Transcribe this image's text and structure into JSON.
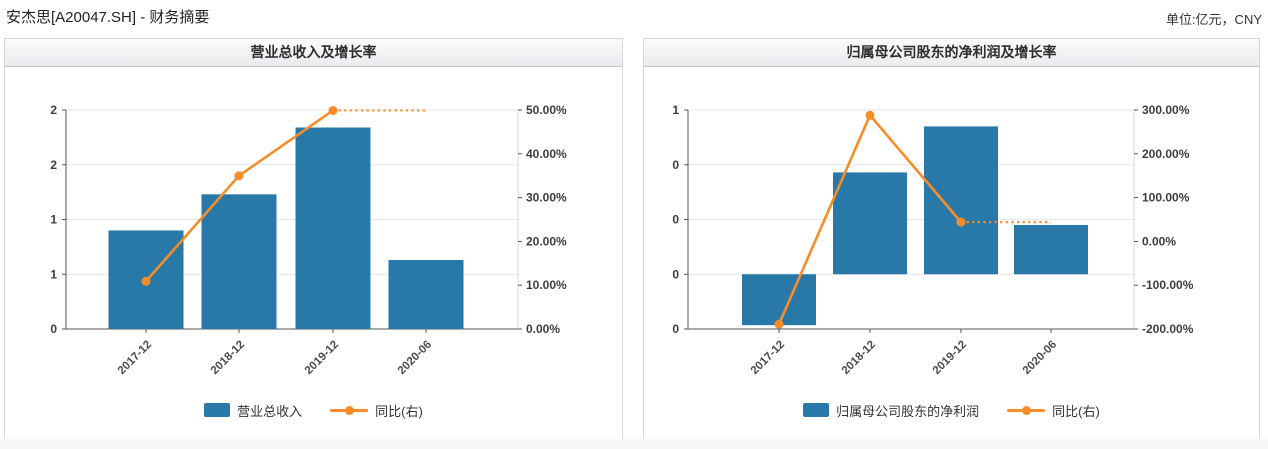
{
  "page": {
    "title": "安杰思[A20047.SH] - 财务摘要",
    "unit_label": "单位:亿元，CNY"
  },
  "colors": {
    "bar": "#2979a8",
    "line": "#f78c28",
    "grid": "#e4e5e8",
    "axis": "#55565a",
    "right_axis_line": "#d7d8db",
    "tick_text": "#3c3d42"
  },
  "chart_data": [
    {
      "type": "bar-line-combo",
      "title": "营业总收入及增长率",
      "categories": [
        "2017-12",
        "2018-12",
        "2019-12",
        "2020-06"
      ],
      "bar_series": {
        "name": "营业总收入",
        "unit": "亿元",
        "values": [
          0.9,
          1.23,
          1.84,
          0.63
        ]
      },
      "line_series": {
        "name": "同比(右)",
        "unit": "%",
        "values_pct": [
          10.9,
          35.0,
          49.9,
          49.9
        ],
        "last_segment_dotted": true
      },
      "left_axis": {
        "min": 0,
        "max": 2,
        "labels": [
          "2",
          "2",
          "1",
          "1",
          "0"
        ]
      },
      "right_axis": {
        "min": 0,
        "max": 50,
        "labels": [
          "50.00%",
          "40.00%",
          "30.00%",
          "20.00%",
          "10.00%",
          "0.00%"
        ]
      },
      "legend_position": "bottom",
      "grid": true
    },
    {
      "type": "bar-line-combo",
      "title": "归属母公司股东的净利润及增长率",
      "categories": [
        "2017-12",
        "2018-12",
        "2019-12",
        "2020-06"
      ],
      "bar_series": {
        "name": "归属母公司股东的净利润",
        "unit": "亿元",
        "values": [
          -0.31,
          0.62,
          0.9,
          0.3
        ]
      },
      "line_series": {
        "name": "同比(右)",
        "unit": "%",
        "values_pct": [
          -189,
          288,
          44,
          44
        ],
        "last_segment_dotted": true
      },
      "left_axis": {
        "min": -0.3333,
        "max": 1,
        "labels": [
          "1",
          "0",
          "0",
          "0",
          "0"
        ]
      },
      "right_axis": {
        "min": -200,
        "max": 300,
        "labels": [
          "300.00%",
          "200.00%",
          "100.00%",
          "0.00%",
          "-100.00%",
          "-200.00%"
        ]
      },
      "legend_position": "bottom",
      "grid": true
    }
  ]
}
